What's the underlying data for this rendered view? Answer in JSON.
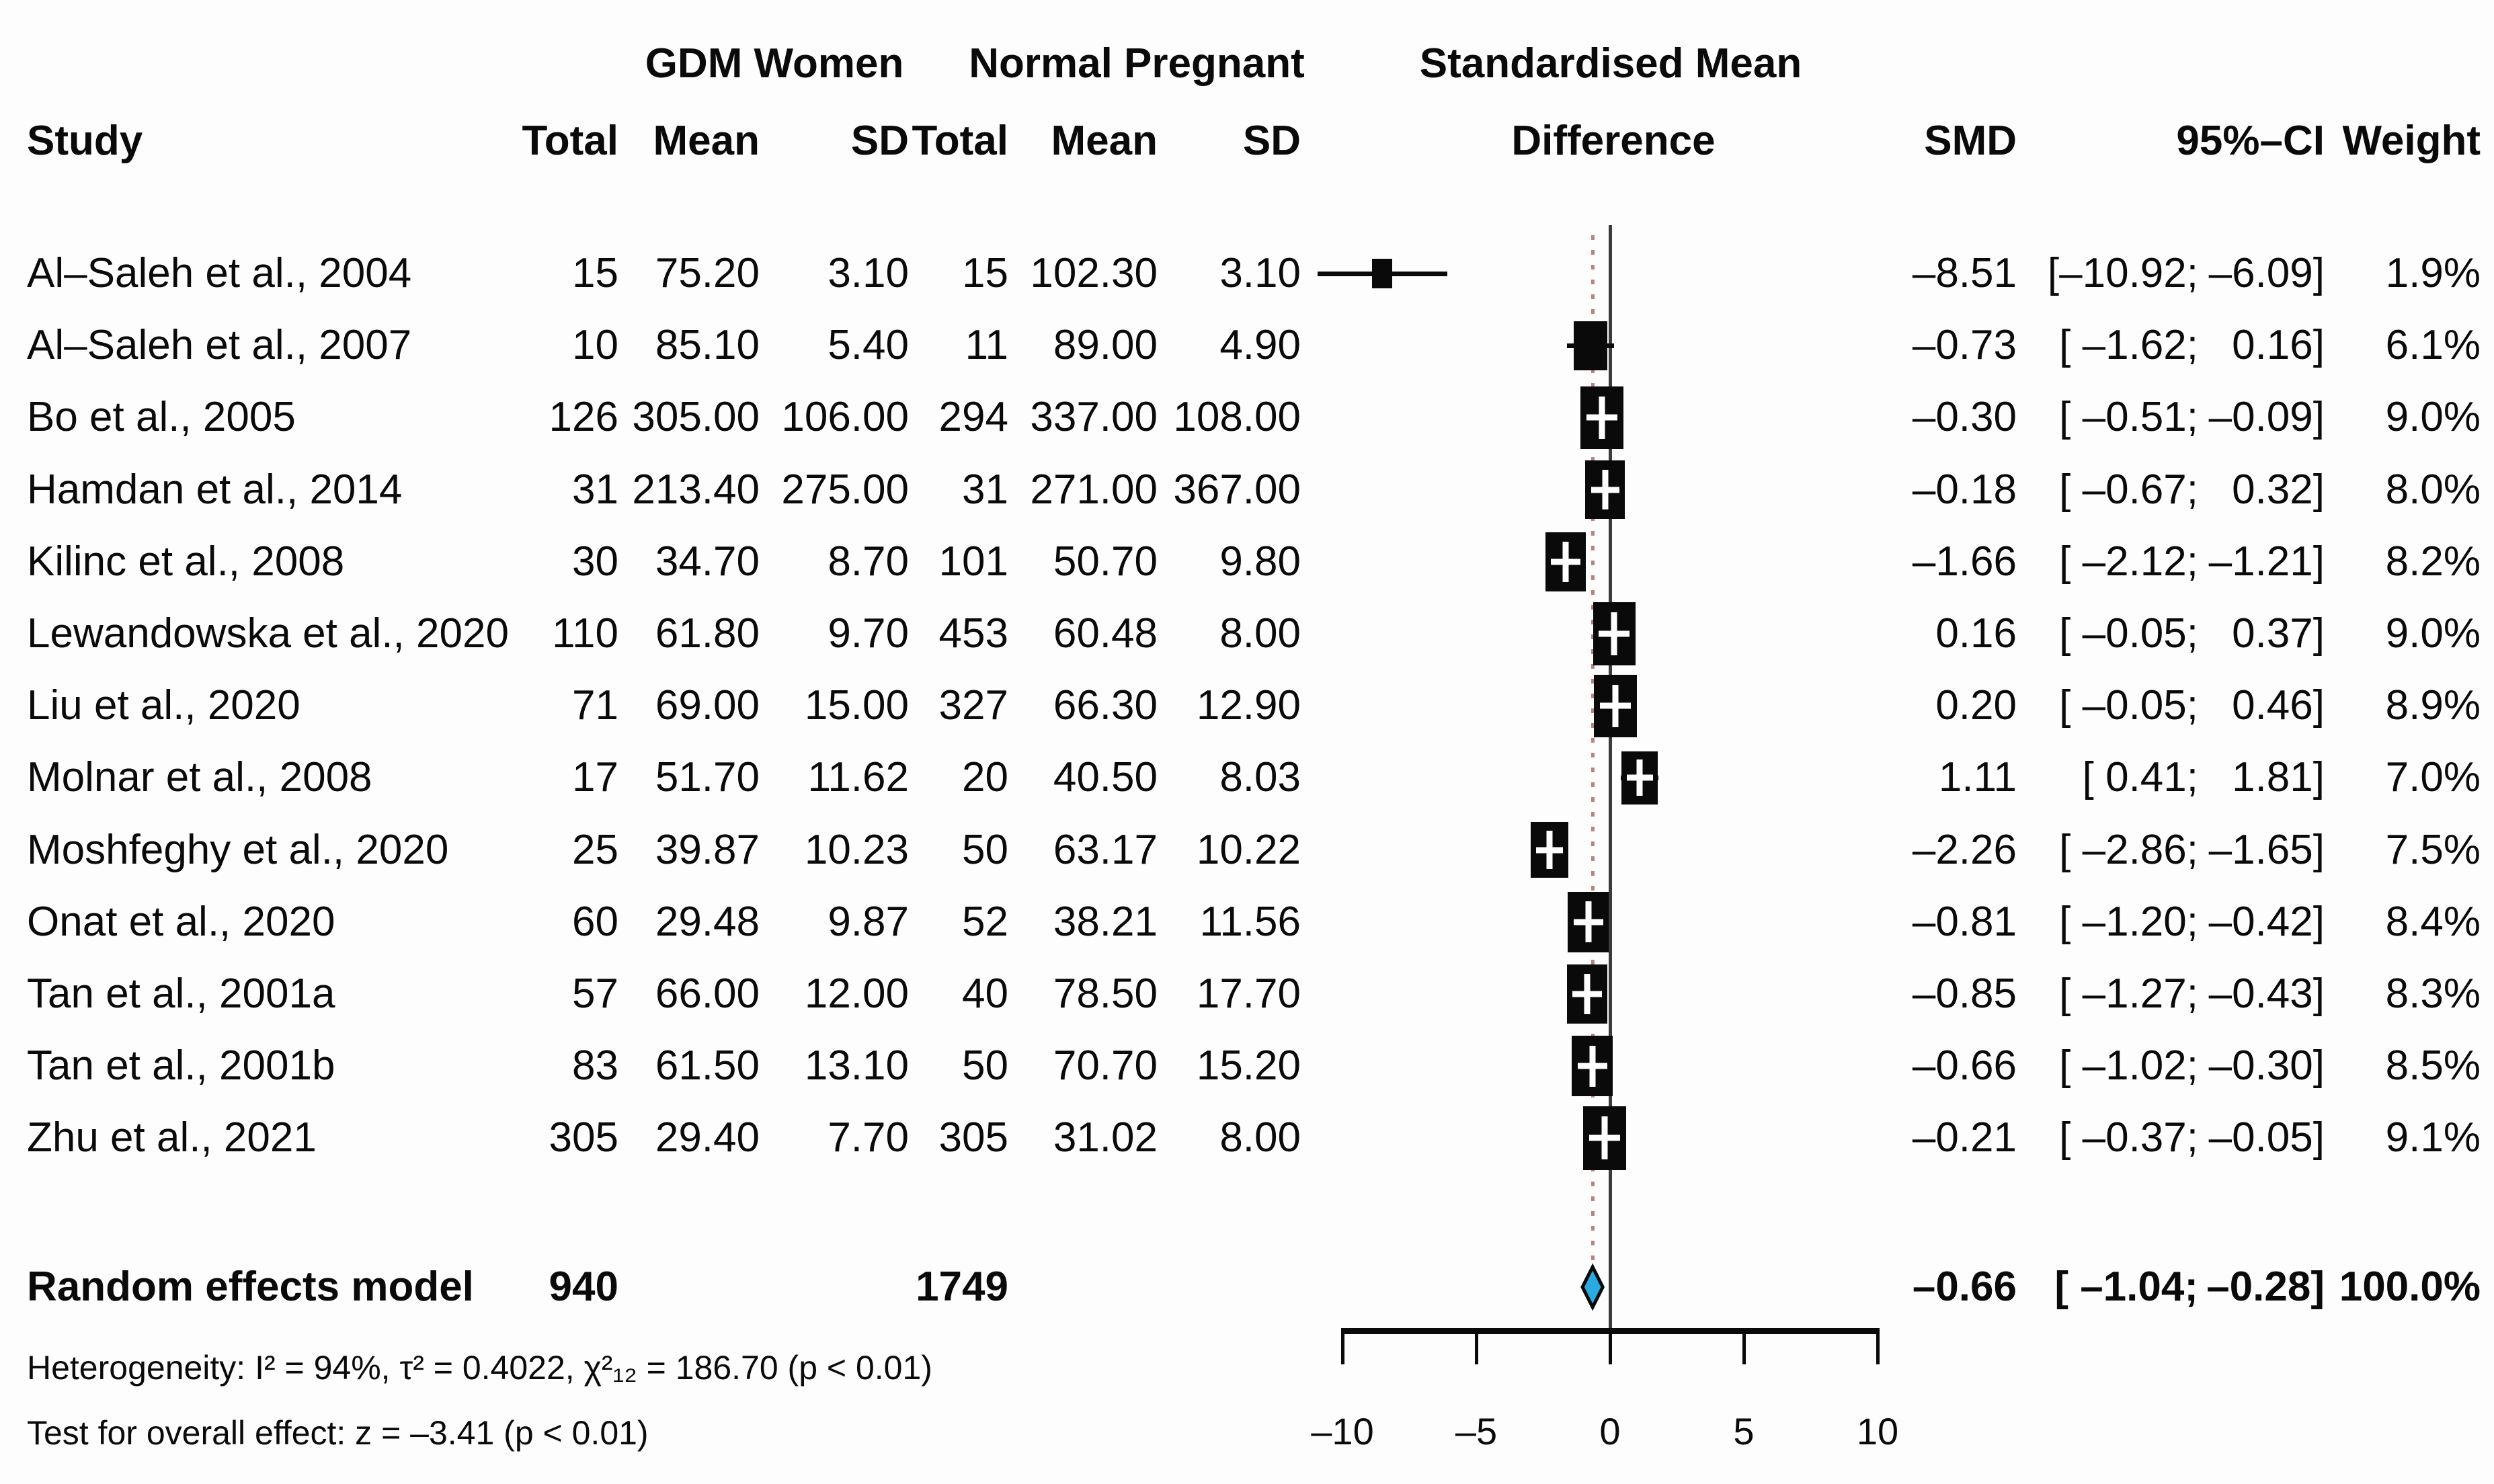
{
  "group_headers": {
    "gdm": "GDM Women",
    "normal": "Normal Pregnant",
    "smd_line1": "Standardised Mean",
    "smd_line2": "Difference"
  },
  "columns": {
    "study": "Study",
    "gdm_total": "Total",
    "gdm_mean": "Mean",
    "gdm_sd": "SD",
    "np_total": "Total",
    "np_mean": "Mean",
    "np_sd": "SD",
    "smd": "SMD",
    "ci": "95%–CI",
    "weight": "Weight"
  },
  "chart_data": {
    "type": "forest",
    "xlabel": "Standardised Mean Difference",
    "x_range": [
      -10,
      10
    ],
    "x_ticks": [
      -10,
      -5,
      0,
      5,
      10
    ],
    "x_tick_labels": [
      "–10",
      "–5",
      "0",
      "5",
      "10"
    ],
    "zero_line": 0,
    "overall_effect_line": -0.66,
    "colors": {
      "marker": "#0a0a0a",
      "diamond_fill": "#29abe2",
      "diamond_stroke": "#0a0a0a",
      "overall_line": "#b98383"
    },
    "studies": [
      {
        "name": "Al–Saleh et al., 2004",
        "gdm_total": "15",
        "gdm_mean": "75.20",
        "gdm_sd": "3.10",
        "np_total": "15",
        "np_mean": "102.30",
        "np_sd": "3.10",
        "smd": -8.51,
        "ci_lo": -10.92,
        "ci_hi": -6.09,
        "smd_str": "–8.51",
        "ci_lo_str": "[–10.92;",
        "ci_hi_str": "–6.09]",
        "weight": 1.9,
        "weight_str": "1.9%"
      },
      {
        "name": "Al–Saleh et al., 2007",
        "gdm_total": "10",
        "gdm_mean": "85.10",
        "gdm_sd": "5.40",
        "np_total": "11",
        "np_mean": "89.00",
        "np_sd": "4.90",
        "smd": -0.73,
        "ci_lo": -1.62,
        "ci_hi": 0.16,
        "smd_str": "–0.73",
        "ci_lo_str": "[ –1.62;",
        "ci_hi_str": "0.16]",
        "weight": 6.1,
        "weight_str": "6.1%"
      },
      {
        "name": "Bo et al., 2005",
        "gdm_total": "126",
        "gdm_mean": "305.00",
        "gdm_sd": "106.00",
        "np_total": "294",
        "np_mean": "337.00",
        "np_sd": "108.00",
        "smd": -0.3,
        "ci_lo": -0.51,
        "ci_hi": -0.09,
        "smd_str": "–0.30",
        "ci_lo_str": "[ –0.51;",
        "ci_hi_str": "–0.09]",
        "weight": 9.0,
        "weight_str": "9.0%"
      },
      {
        "name": "Hamdan et al., 2014",
        "gdm_total": "31",
        "gdm_mean": "213.40",
        "gdm_sd": "275.00",
        "np_total": "31",
        "np_mean": "271.00",
        "np_sd": "367.00",
        "smd": -0.18,
        "ci_lo": -0.67,
        "ci_hi": 0.32,
        "smd_str": "–0.18",
        "ci_lo_str": "[ –0.67;",
        "ci_hi_str": "0.32]",
        "weight": 8.0,
        "weight_str": "8.0%"
      },
      {
        "name": "Kilinc et al., 2008",
        "gdm_total": "30",
        "gdm_mean": "34.70",
        "gdm_sd": "8.70",
        "np_total": "101",
        "np_mean": "50.70",
        "np_sd": "9.80",
        "smd": -1.66,
        "ci_lo": -2.12,
        "ci_hi": -1.21,
        "smd_str": "–1.66",
        "ci_lo_str": "[ –2.12;",
        "ci_hi_str": "–1.21]",
        "weight": 8.2,
        "weight_str": "8.2%"
      },
      {
        "name": "Lewandowska et al., 2020",
        "gdm_total": "110",
        "gdm_mean": "61.80",
        "gdm_sd": "9.70",
        "np_total": "453",
        "np_mean": "60.48",
        "np_sd": "8.00",
        "smd": 0.16,
        "ci_lo": -0.05,
        "ci_hi": 0.37,
        "smd_str": "0.16",
        "ci_lo_str": "[ –0.05;",
        "ci_hi_str": "0.37]",
        "weight": 9.0,
        "weight_str": "9.0%"
      },
      {
        "name": "Liu et al., 2020",
        "gdm_total": "71",
        "gdm_mean": "69.00",
        "gdm_sd": "15.00",
        "np_total": "327",
        "np_mean": "66.30",
        "np_sd": "12.90",
        "smd": 0.2,
        "ci_lo": -0.05,
        "ci_hi": 0.46,
        "smd_str": "0.20",
        "ci_lo_str": "[ –0.05;",
        "ci_hi_str": "0.46]",
        "weight": 8.9,
        "weight_str": "8.9%"
      },
      {
        "name": "Molnar et al., 2008",
        "gdm_total": "17",
        "gdm_mean": "51.70",
        "gdm_sd": "11.62",
        "np_total": "20",
        "np_mean": "40.50",
        "np_sd": "8.03",
        "smd": 1.11,
        "ci_lo": 0.41,
        "ci_hi": 1.81,
        "smd_str": "1.11",
        "ci_lo_str": "[ 0.41;",
        "ci_hi_str": "1.81]",
        "weight": 7.0,
        "weight_str": "7.0%"
      },
      {
        "name": "Moshfeghy et al., 2020",
        "gdm_total": "25",
        "gdm_mean": "39.87",
        "gdm_sd": "10.23",
        "np_total": "50",
        "np_mean": "63.17",
        "np_sd": "10.22",
        "smd": -2.26,
        "ci_lo": -2.86,
        "ci_hi": -1.65,
        "smd_str": "–2.26",
        "ci_lo_str": "[ –2.86;",
        "ci_hi_str": "–1.65]",
        "weight": 7.5,
        "weight_str": "7.5%"
      },
      {
        "name": "Onat et al., 2020",
        "gdm_total": "60",
        "gdm_mean": "29.48",
        "gdm_sd": "9.87",
        "np_total": "52",
        "np_mean": "38.21",
        "np_sd": "11.56",
        "smd": -0.81,
        "ci_lo": -1.2,
        "ci_hi": -0.42,
        "smd_str": "–0.81",
        "ci_lo_str": "[ –1.20;",
        "ci_hi_str": "–0.42]",
        "weight": 8.4,
        "weight_str": "8.4%"
      },
      {
        "name": "Tan et al., 2001a",
        "gdm_total": "57",
        "gdm_mean": "66.00",
        "gdm_sd": "12.00",
        "np_total": "40",
        "np_mean": "78.50",
        "np_sd": "17.70",
        "smd": -0.85,
        "ci_lo": -1.27,
        "ci_hi": -0.43,
        "smd_str": "–0.85",
        "ci_lo_str": "[ –1.27;",
        "ci_hi_str": "–0.43]",
        "weight": 8.3,
        "weight_str": "8.3%"
      },
      {
        "name": "Tan et al., 2001b",
        "gdm_total": "83",
        "gdm_mean": "61.50",
        "gdm_sd": "13.10",
        "np_total": "50",
        "np_mean": "70.70",
        "np_sd": "15.20",
        "smd": -0.66,
        "ci_lo": -1.02,
        "ci_hi": -0.3,
        "smd_str": "–0.66",
        "ci_lo_str": "[ –1.02;",
        "ci_hi_str": "–0.30]",
        "weight": 8.5,
        "weight_str": "8.5%"
      },
      {
        "name": "Zhu et al., 2021",
        "gdm_total": "305",
        "gdm_mean": "29.40",
        "gdm_sd": "7.70",
        "np_total": "305",
        "np_mean": "31.02",
        "np_sd": "8.00",
        "smd": -0.21,
        "ci_lo": -0.37,
        "ci_hi": -0.05,
        "smd_str": "–0.21",
        "ci_lo_str": "[ –0.37;",
        "ci_hi_str": "–0.05]",
        "weight": 9.1,
        "weight_str": "9.1%"
      }
    ],
    "summary": {
      "label": "Random effects model",
      "gdm_total": "940",
      "np_total": "1749",
      "smd": -0.66,
      "ci_lo": -1.04,
      "ci_hi": -0.28,
      "smd_str": "–0.66",
      "ci_lo_str": "[ –1.04;",
      "ci_hi_str": "–0.28]",
      "weight_str": "100.0%"
    }
  },
  "footer": {
    "heterogeneity": "Heterogeneity: I² = 94%, τ² = 0.4022, χ²₁₂ = 186.70 (p < 0.01)",
    "overall_test": "Test for overall effect: z = –3.41 (p < 0.01)"
  }
}
